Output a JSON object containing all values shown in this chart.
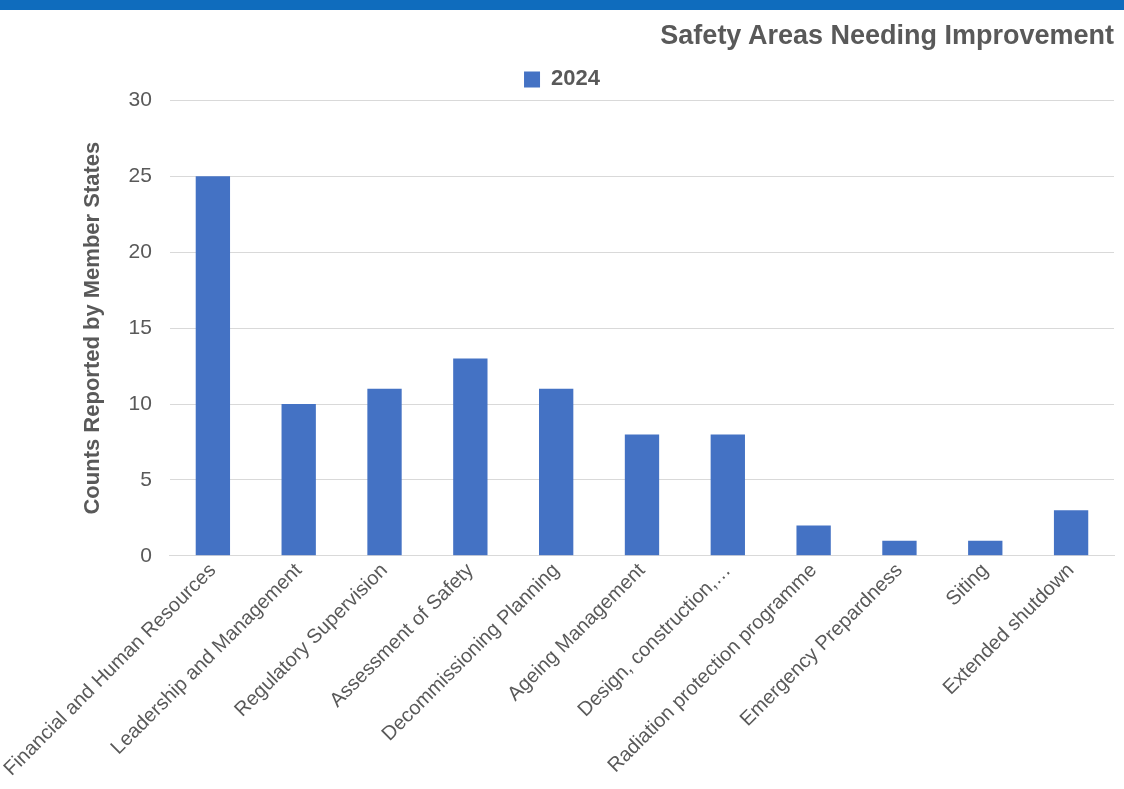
{
  "chart_data": {
    "type": "bar",
    "title": "Safety Areas Needing Improvement",
    "ylabel": "Counts Reported by Member States",
    "categories": [
      "Financial and Human Resources",
      "Leadership and Management",
      "Regulatory Supervision",
      "Assessment of Safety",
      "Decommissioning Planning",
      "Ageing Management",
      "Design, construction,…",
      "Radiation protection programme",
      "Emergency Prepardness",
      "Siting",
      "Extended shutdown"
    ],
    "series": [
      {
        "name": "2024",
        "color": "#4472c4",
        "values": [
          25,
          10,
          11,
          13,
          11,
          8,
          8,
          2,
          1,
          1,
          3
        ]
      }
    ],
    "ylim": [
      0,
      30
    ],
    "yticks": [
      0,
      5,
      10,
      15,
      20,
      25,
      30
    ],
    "grid": "y",
    "legend": "top"
  }
}
